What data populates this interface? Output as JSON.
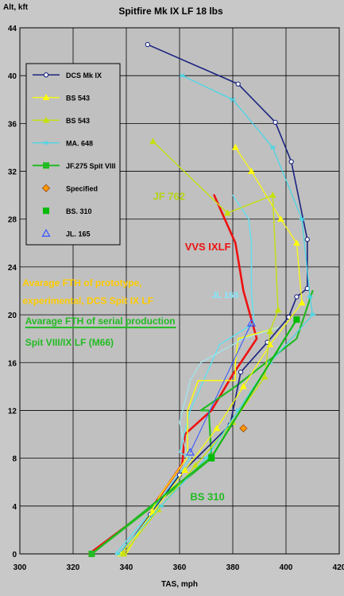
{
  "chart_data": {
    "type": "line",
    "title": "Spitfire Mk IX LF 18 lbs",
    "xlabel": "TAS, mph",
    "ylabel": "Alt, kft",
    "xlim": [
      300,
      420
    ],
    "ylim": [
      0,
      44
    ],
    "xticks": [
      "300",
      "320",
      "340",
      "360",
      "380",
      "400",
      "420"
    ],
    "yticks": [
      "0",
      "4",
      "8",
      "12",
      "16",
      "20",
      "24",
      "28",
      "32",
      "36",
      "40",
      "44"
    ],
    "grid": true,
    "legend_position": "top-left",
    "series": [
      {
        "name": "DCS Mk IX",
        "color": "#1a237e",
        "width": 1.6,
        "marker": "circle-open",
        "x": [
          338,
          349,
          360,
          379,
          383,
          393,
          401,
          404,
          408,
          408,
          402,
          396,
          382,
          348
        ],
        "y": [
          0,
          3.3,
          6.6,
          10.8,
          15.2,
          17.7,
          19.8,
          21.5,
          22.2,
          26.3,
          32.8,
          36.1,
          39.3,
          42.6
        ]
      },
      {
        "name": "BS 543",
        "color": "#ffff00",
        "width": 1.2,
        "marker": "triangle",
        "x": [
          338,
          350,
          362,
          374,
          384,
          394,
          406,
          404,
          398,
          387,
          381
        ],
        "y": [
          0,
          3.5,
          7,
          10.5,
          14,
          17.5,
          21,
          26,
          28,
          32,
          34
        ]
      },
      {
        "name": "BS 543",
        "color": "#c6e010",
        "width": 1.4,
        "marker": "triangle",
        "x": [
          339,
          352,
          366,
          380,
          392,
          394,
          397,
          395,
          378,
          350
        ],
        "y": [
          0,
          3.7,
          7.4,
          11,
          14.8,
          18.6,
          20.4,
          30,
          28.5,
          34.5
        ]
      },
      {
        "name": "MA. 648",
        "color": "#40d8e8",
        "width": 1.2,
        "marker": "asterisk",
        "x": [
          337,
          353,
          370,
          382,
          394,
          410,
          409,
          406,
          395,
          380,
          361
        ],
        "y": [
          0,
          4,
          8,
          12,
          16,
          20,
          21.5,
          28,
          34,
          38,
          40
        ]
      },
      {
        "name": "JF.275 Spit VIII",
        "color": "#22bb22",
        "width": 2.2,
        "marker": "square",
        "x": [
          327,
          372,
          404
        ],
        "y": [
          0,
          8.1,
          19.6
        ]
      },
      {
        "name": "Specified",
        "color": "#ff9900",
        "width": 1,
        "marker": "diamond",
        "x": [
          384
        ],
        "y": [
          10.5
        ]
      },
      {
        "name": "BS. 310",
        "color": "#00bb00",
        "width": 1,
        "marker": "square",
        "x": [
          372,
          404
        ],
        "y": [
          8.0,
          19.6
        ]
      },
      {
        "name": "JL. 165",
        "color": "#3355ff",
        "width": 1,
        "marker": "triangle-open",
        "x": [
          364,
          387
        ],
        "y": [
          8.5,
          19.3
        ]
      }
    ],
    "extra_lines": [
      {
        "name": "VVS IXLF",
        "color": "#ee1111",
        "width": 2.6,
        "x": [
          326,
          350,
          361,
          362,
          372,
          380,
          389,
          384,
          381,
          373
        ],
        "y": [
          0,
          4,
          7.5,
          10,
          12,
          15,
          18,
          22,
          26,
          30
        ]
      },
      {
        "name": "BS 310",
        "color": "#22bb22",
        "width": 2.2,
        "x": [
          327,
          350,
          372,
          371,
          368,
          381,
          404,
          410
        ],
        "y": [
          0,
          4,
          8,
          12,
          12,
          14,
          18,
          22
        ]
      },
      {
        "name": "JL. 165",
        "color": "#60e0f0",
        "width": 1.4,
        "x": [
          336,
          351,
          364,
          360,
          364,
          372,
          375,
          388,
          387,
          387,
          386,
          380
        ],
        "y": [
          0,
          4,
          8,
          8.5,
          12,
          16,
          17.5,
          19.3,
          22,
          26,
          28,
          30
        ]
      },
      {
        "name": "BS 543",
        "color": "#ffff00",
        "width": 1.4,
        "x": [
          340,
          353,
          363,
          363,
          367,
          381,
          381,
          382,
          390,
          398
        ],
        "y": [
          0,
          5,
          8.1,
          12,
          14.5,
          14.5,
          16,
          18,
          18.5,
          19
        ]
      },
      {
        "name": "MA. 648",
        "color": "#a0e8f0",
        "width": 1.2,
        "x": [
          363,
          360,
          364,
          368,
          384,
          398
        ],
        "y": [
          8,
          11,
          14.5,
          16,
          18,
          19
        ]
      }
    ],
    "annotations": [
      {
        "text": "JF 762",
        "color": "#b5d414",
        "x": 350,
        "y": 29.6,
        "size": 13
      },
      {
        "text": "VVS IXLF",
        "color": "#ee1111",
        "x": 362,
        "y": 25.4,
        "size": 13
      },
      {
        "text": "JL 165",
        "color": "#7fe8ff",
        "x": 372,
        "y": 21.4,
        "size": 11
      },
      {
        "text": "Avarage FTH of prototype,",
        "color": "#ffcc00",
        "x": 301,
        "y": 22.4,
        "size": 12
      },
      {
        "text": "experimental, DCS Spit IX LF",
        "color": "#ffcc00",
        "x": 301,
        "y": 20.9,
        "size": 12
      },
      {
        "text": "Avarage FTH of serial production",
        "color": "#22bb22",
        "x": 302,
        "y": 19.2,
        "size": 12
      },
      {
        "text": "Spit VIII/IX LF (M66)",
        "color": "#22bb22",
        "x": 302,
        "y": 17.4,
        "size": 12
      },
      {
        "text": "BS 310",
        "color": "#22bb22",
        "x": 364,
        "y": 4.5,
        "size": 13
      }
    ]
  }
}
